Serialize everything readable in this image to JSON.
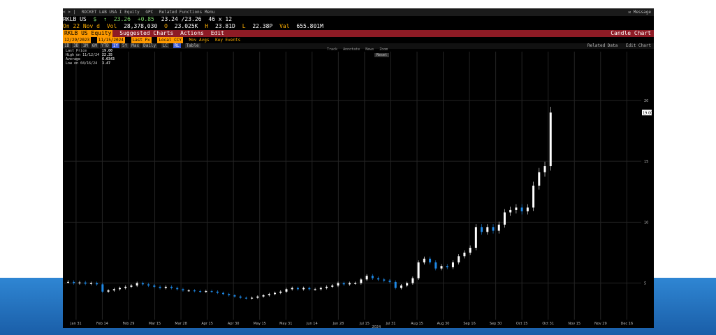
{
  "colors": {
    "up": "#ffffff",
    "down": "#1e88e5",
    "grid": "#242424",
    "bar_header": "#8e1b25",
    "accent": "#ff9a00"
  },
  "header": {
    "nav": "< > |",
    "security_name": "ROCKET LAB USA I Equity",
    "gpc": "GPC",
    "related_menu": "Related Functions Menu",
    "message": "Message"
  },
  "quote": {
    "ticker": "RKLB US",
    "dollar": "$",
    "arrow": "↑",
    "last": "23.26",
    "change": "+0.85",
    "bid_ask": "23.24 /23.26",
    "size": "46 x 12",
    "date_label": "On 22 Nov d",
    "vol_label": "Vol",
    "volume": "28,378,030",
    "open_label": "O",
    "open": "23.025K",
    "high_label": "H",
    "high": "23.81D",
    "low_label": "L",
    "low": "22.38P",
    "val_label": "Val",
    "value": "655.801M"
  },
  "menu": {
    "security": "RKLB US Equity",
    "suggested": "Suggested Charts",
    "actions": "Actions",
    "edit": "Edit",
    "title": "Candle Chart"
  },
  "controls": {
    "start": "12/29/2023",
    "end": "11/15/2024",
    "period": "Last Px",
    "local": "Local CCY",
    "mov_avgs": "Mov Avgs",
    "key_events": "Key Events"
  },
  "ranges": {
    "items": [
      "1D",
      "3D",
      "1M",
      "6M",
      "YTD",
      "1Y",
      "5Y",
      "Max",
      "Daily"
    ],
    "selected": "1Y",
    "extras": [
      "LC",
      "RL"
    ],
    "table": "Table",
    "related_data": "Related Data",
    "edit_chart": "Edit Chart"
  },
  "tools": [
    "Track",
    "Annotate",
    "News",
    "Zoom"
  ],
  "reset": "Reset",
  "legend": {
    "last_price_label": "Last Price",
    "last_price": "19.00",
    "high_label": "High on 11/12/24",
    "high": "22.35",
    "avg_label": "Average",
    "avg": "6.0343",
    "low_label": "Low on 04/16/24",
    "low": "3.47"
  },
  "chart_data": {
    "type": "candlestick",
    "ylim": [
      2,
      24
    ],
    "yticks": [
      5,
      10,
      15,
      20
    ],
    "last_price_label": "19.00",
    "xticks": [
      "Jan 31",
      "Feb 14",
      "Feb 29",
      "Mar 15",
      "Mar 28",
      "Apr 15",
      "Apr 30",
      "May 15",
      "May 31",
      "Jun 14",
      "Jun 28",
      "Jul 15",
      "Jul 31",
      "Aug 15",
      "Aug 30",
      "Sep 16",
      "Sep 30",
      "Oct 15",
      "Oct 31",
      "Nov 15",
      "Nov 29",
      "Dec 16"
    ],
    "year_label": "2024",
    "closes": [
      5.1,
      5.0,
      5.05,
      4.95,
      5.0,
      4.9,
      4.3,
      4.4,
      4.5,
      4.6,
      4.7,
      4.8,
      5.0,
      4.9,
      4.8,
      4.7,
      4.6,
      4.7,
      4.6,
      4.5,
      4.4,
      4.4,
      4.35,
      4.3,
      4.35,
      4.3,
      4.2,
      4.1,
      4.0,
      3.9,
      3.8,
      3.75,
      3.8,
      3.9,
      4.0,
      4.1,
      4.2,
      4.3,
      4.5,
      4.6,
      4.5,
      4.6,
      4.5,
      4.5,
      4.6,
      4.7,
      4.8,
      5.0,
      4.9,
      5.0,
      5.0,
      5.3,
      5.6,
      5.4,
      5.3,
      5.2,
      5.1,
      4.6,
      4.8,
      5.0,
      5.4,
      6.7,
      7.0,
      6.7,
      6.2,
      6.4,
      6.3,
      6.7,
      7.2,
      7.5,
      7.9,
      9.6,
      9.2,
      9.6,
      9.3,
      9.8,
      10.8,
      11.0,
      11.2,
      10.9,
      11.2,
      13.0,
      14.1,
      14.6,
      19.0
    ]
  }
}
